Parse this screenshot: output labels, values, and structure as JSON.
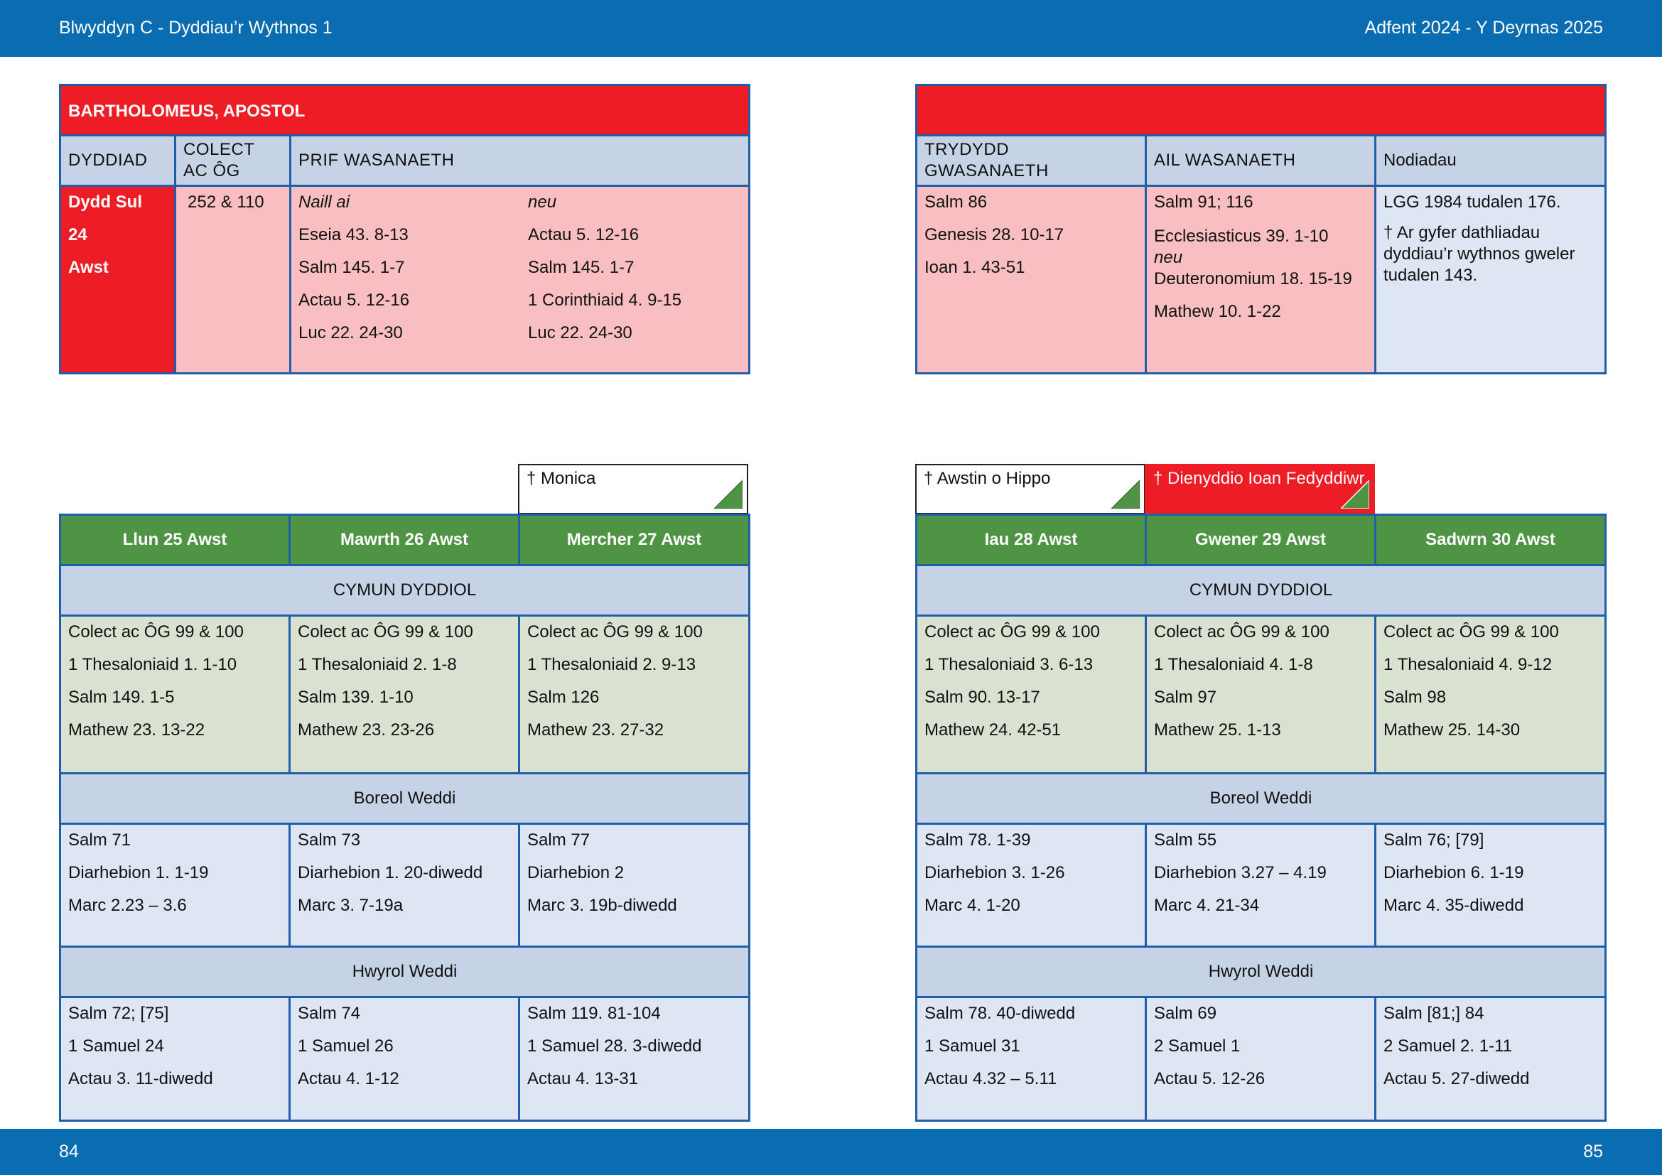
{
  "header": {
    "left": "Blwyddyn  C - Dyddiau’r Wythnos 1",
    "right": "Adfent  2024 - Y Deyrnas 2025"
  },
  "footer": {
    "left_page": "84",
    "right_page": "85"
  },
  "feast": {
    "title": "BARTHOLOMEUS, APOSTOL",
    "col_date": "DYDDIAD",
    "col_collect": "COLECT AC ÔG",
    "col_main": "PRIF WASANAETH",
    "date_lines": [
      "Dydd Sul",
      "24",
      "Awst"
    ],
    "collect": "252 & 110",
    "main_a": [
      "Naill ai",
      "Eseia 43. 8-13",
      "Salm 145. 1-7",
      "Actau 5. 12-16",
      "Luc 22. 24-30"
    ],
    "main_b": [
      "neu",
      "Actau 5. 12-16",
      "Salm 145. 1-7",
      "1 Corinthiaid 4. 9-15",
      "Luc 22. 24-30"
    ],
    "col_third": "TRYDYDD GWASANAETH",
    "col_second": "AIL WASANAETH",
    "col_notes": "Nodiadau",
    "third": [
      "Salm 86",
      "Genesis 28. 10-17",
      "Ioan 1. 43-51"
    ],
    "second": {
      "line1": "Salm 91; 116",
      "line2": "Ecclesiasticus 39. 1-10",
      "line3": "neu",
      "line4": "Deuteronomium 18. 15-19",
      "line5": "Mathew 10. 1-22"
    },
    "notes": [
      "LGG 1984 tudalen 176.",
      "† Ar gyfer dathliadau dyddiau’r wythnos gweler tudalen 143."
    ]
  },
  "commemorations": {
    "monica": "† Monica",
    "awstin": "† Awstin o Hippo",
    "ioan": "† Dienyddio Ioan Fedyddiwr"
  },
  "sections": {
    "daily": "CYMUN DYDDIOL",
    "morning": "Boreol Weddi",
    "evening": "Hwyrol Weddi"
  },
  "days": [
    {
      "label": "Llun 25 Awst",
      "communion": [
        "Colect ac ÔG 99 & 100",
        "1 Thesaloniaid 1. 1-10",
        "Salm 149. 1-5",
        "Mathew 23. 13-22"
      ],
      "morning": [
        "Salm 71",
        "Diarhebion 1. 1-19",
        "Marc 2.23 – 3.6"
      ],
      "evening": [
        "Salm 72; [75]",
        "1 Samuel 24",
        "Actau 3. 11-diwedd"
      ]
    },
    {
      "label": "Mawrth 26 Awst",
      "communion": [
        "Colect ac ÔG 99 & 100",
        "1 Thesaloniaid 2. 1-8",
        "Salm 139. 1-10",
        "Mathew 23. 23-26"
      ],
      "morning": [
        "Salm 73",
        "Diarhebion 1. 20-diwedd",
        "Marc 3. 7-19a"
      ],
      "evening": [
        "Salm 74",
        "1 Samuel 26",
        "Actau 4. 1-12"
      ]
    },
    {
      "label": "Mercher 27 Awst",
      "communion": [
        "Colect ac ÔG 99 & 100",
        "1 Thesaloniaid 2. 9-13",
        "Salm 126",
        "Mathew 23. 27-32"
      ],
      "morning": [
        "Salm 77",
        "Diarhebion 2",
        "Marc 3. 19b-diwedd"
      ],
      "evening": [
        "Salm 119. 81-104",
        "1 Samuel 28. 3-diwedd",
        "Actau 4. 13-31"
      ]
    },
    {
      "label": "Iau 28 Awst",
      "communion": [
        "Colect ac ÔG 99 & 100",
        "1 Thesaloniaid 3. 6-13",
        "Salm 90. 13-17",
        "Mathew 24. 42-51"
      ],
      "morning": [
        "Salm 78. 1-39",
        "Diarhebion 3. 1-26",
        "Marc 4. 1-20"
      ],
      "evening": [
        "Salm 78. 40-diwedd",
        "1 Samuel 31",
        "Actau 4.32 – 5.11"
      ]
    },
    {
      "label": "Gwener 29 Awst",
      "communion": [
        "Colect ac ÔG 99 & 100",
        "1 Thesaloniaid 4. 1-8",
        "Salm 97",
        "Mathew 25. 1-13"
      ],
      "morning": [
        "Salm 55",
        "Diarhebion 3.27 – 4.19",
        "Marc 4. 21-34"
      ],
      "evening": [
        "Salm 69",
        "2 Samuel 1",
        "Actau 5. 12-26"
      ]
    },
    {
      "label": "Sadwrn 30 Awst",
      "communion": [
        "Colect ac ÔG 99 & 100",
        "1 Thesaloniaid 4. 9-12",
        "Salm 98",
        "Mathew 25. 14-30"
      ],
      "morning": [
        "Salm 76; [79]",
        "Diarhebion 6. 1-19",
        "Marc 4. 35-diwedd"
      ],
      "evening": [
        "Salm [81;] 84",
        "2 Samuel 2. 1-11",
        "Actau 5. 27-diwedd"
      ]
    }
  ],
  "colors": {
    "band": "#0a6cb1",
    "red": "#ee1c25",
    "green": "#4f9445",
    "pink": "#f8bec1",
    "sage": "#d9e2d1",
    "blue": "#dde6f2"
  }
}
